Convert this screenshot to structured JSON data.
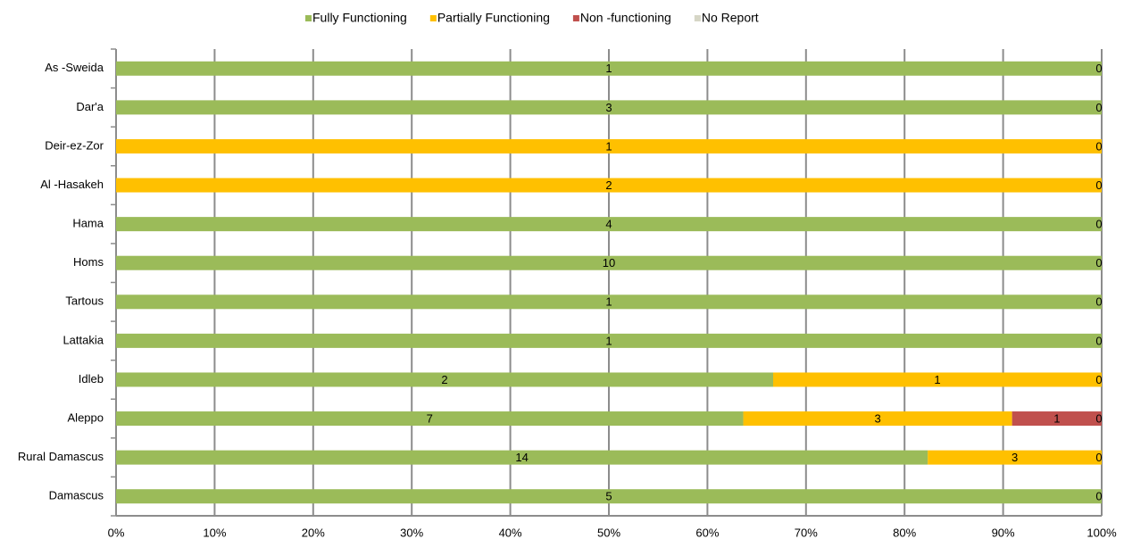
{
  "chart_data": {
    "type": "bar",
    "orientation": "horizontal",
    "stacking": "percent",
    "categories": [
      "As -Sweida",
      "Dar'a",
      "Deir-ez-Zor",
      "Al -Hasakeh",
      "Hama",
      "Homs",
      "Tartous",
      "Lattakia",
      "Idleb",
      "Aleppo",
      "Rural Damascus",
      "Damascus"
    ],
    "series": [
      {
        "name": "Fully Functioning",
        "color": "#9bbb59",
        "values": [
          1,
          3,
          0,
          0,
          4,
          10,
          1,
          1,
          2,
          7,
          14,
          5
        ]
      },
      {
        "name": "Partially Functioning",
        "color": "#ffc000",
        "values": [
          0,
          0,
          1,
          2,
          0,
          0,
          0,
          0,
          1,
          3,
          3,
          0
        ]
      },
      {
        "name": "Non -functioning",
        "color": "#c0504d",
        "values": [
          0,
          0,
          0,
          0,
          0,
          0,
          0,
          0,
          0,
          1,
          0,
          0
        ]
      },
      {
        "name": "No Report",
        "color": "#d6d6c6",
        "label_zeros": true,
        "values": [
          0,
          0,
          0,
          0,
          0,
          0,
          0,
          0,
          0,
          0,
          0,
          0
        ]
      }
    ],
    "xlim": [
      0,
      100
    ],
    "xticks": [
      {
        "value": 0,
        "label": "0%"
      },
      {
        "value": 10,
        "label": "10%"
      },
      {
        "value": 20,
        "label": "20%"
      },
      {
        "value": 30,
        "label": "30%"
      },
      {
        "value": 40,
        "label": "40%"
      },
      {
        "value": 50,
        "label": "50%"
      },
      {
        "value": 60,
        "label": "60%"
      },
      {
        "value": 70,
        "label": "70%"
      },
      {
        "value": 80,
        "label": "80%"
      },
      {
        "value": 90,
        "label": "90%"
      },
      {
        "value": 100,
        "label": "100%"
      }
    ],
    "grid": true,
    "legend": "top"
  }
}
